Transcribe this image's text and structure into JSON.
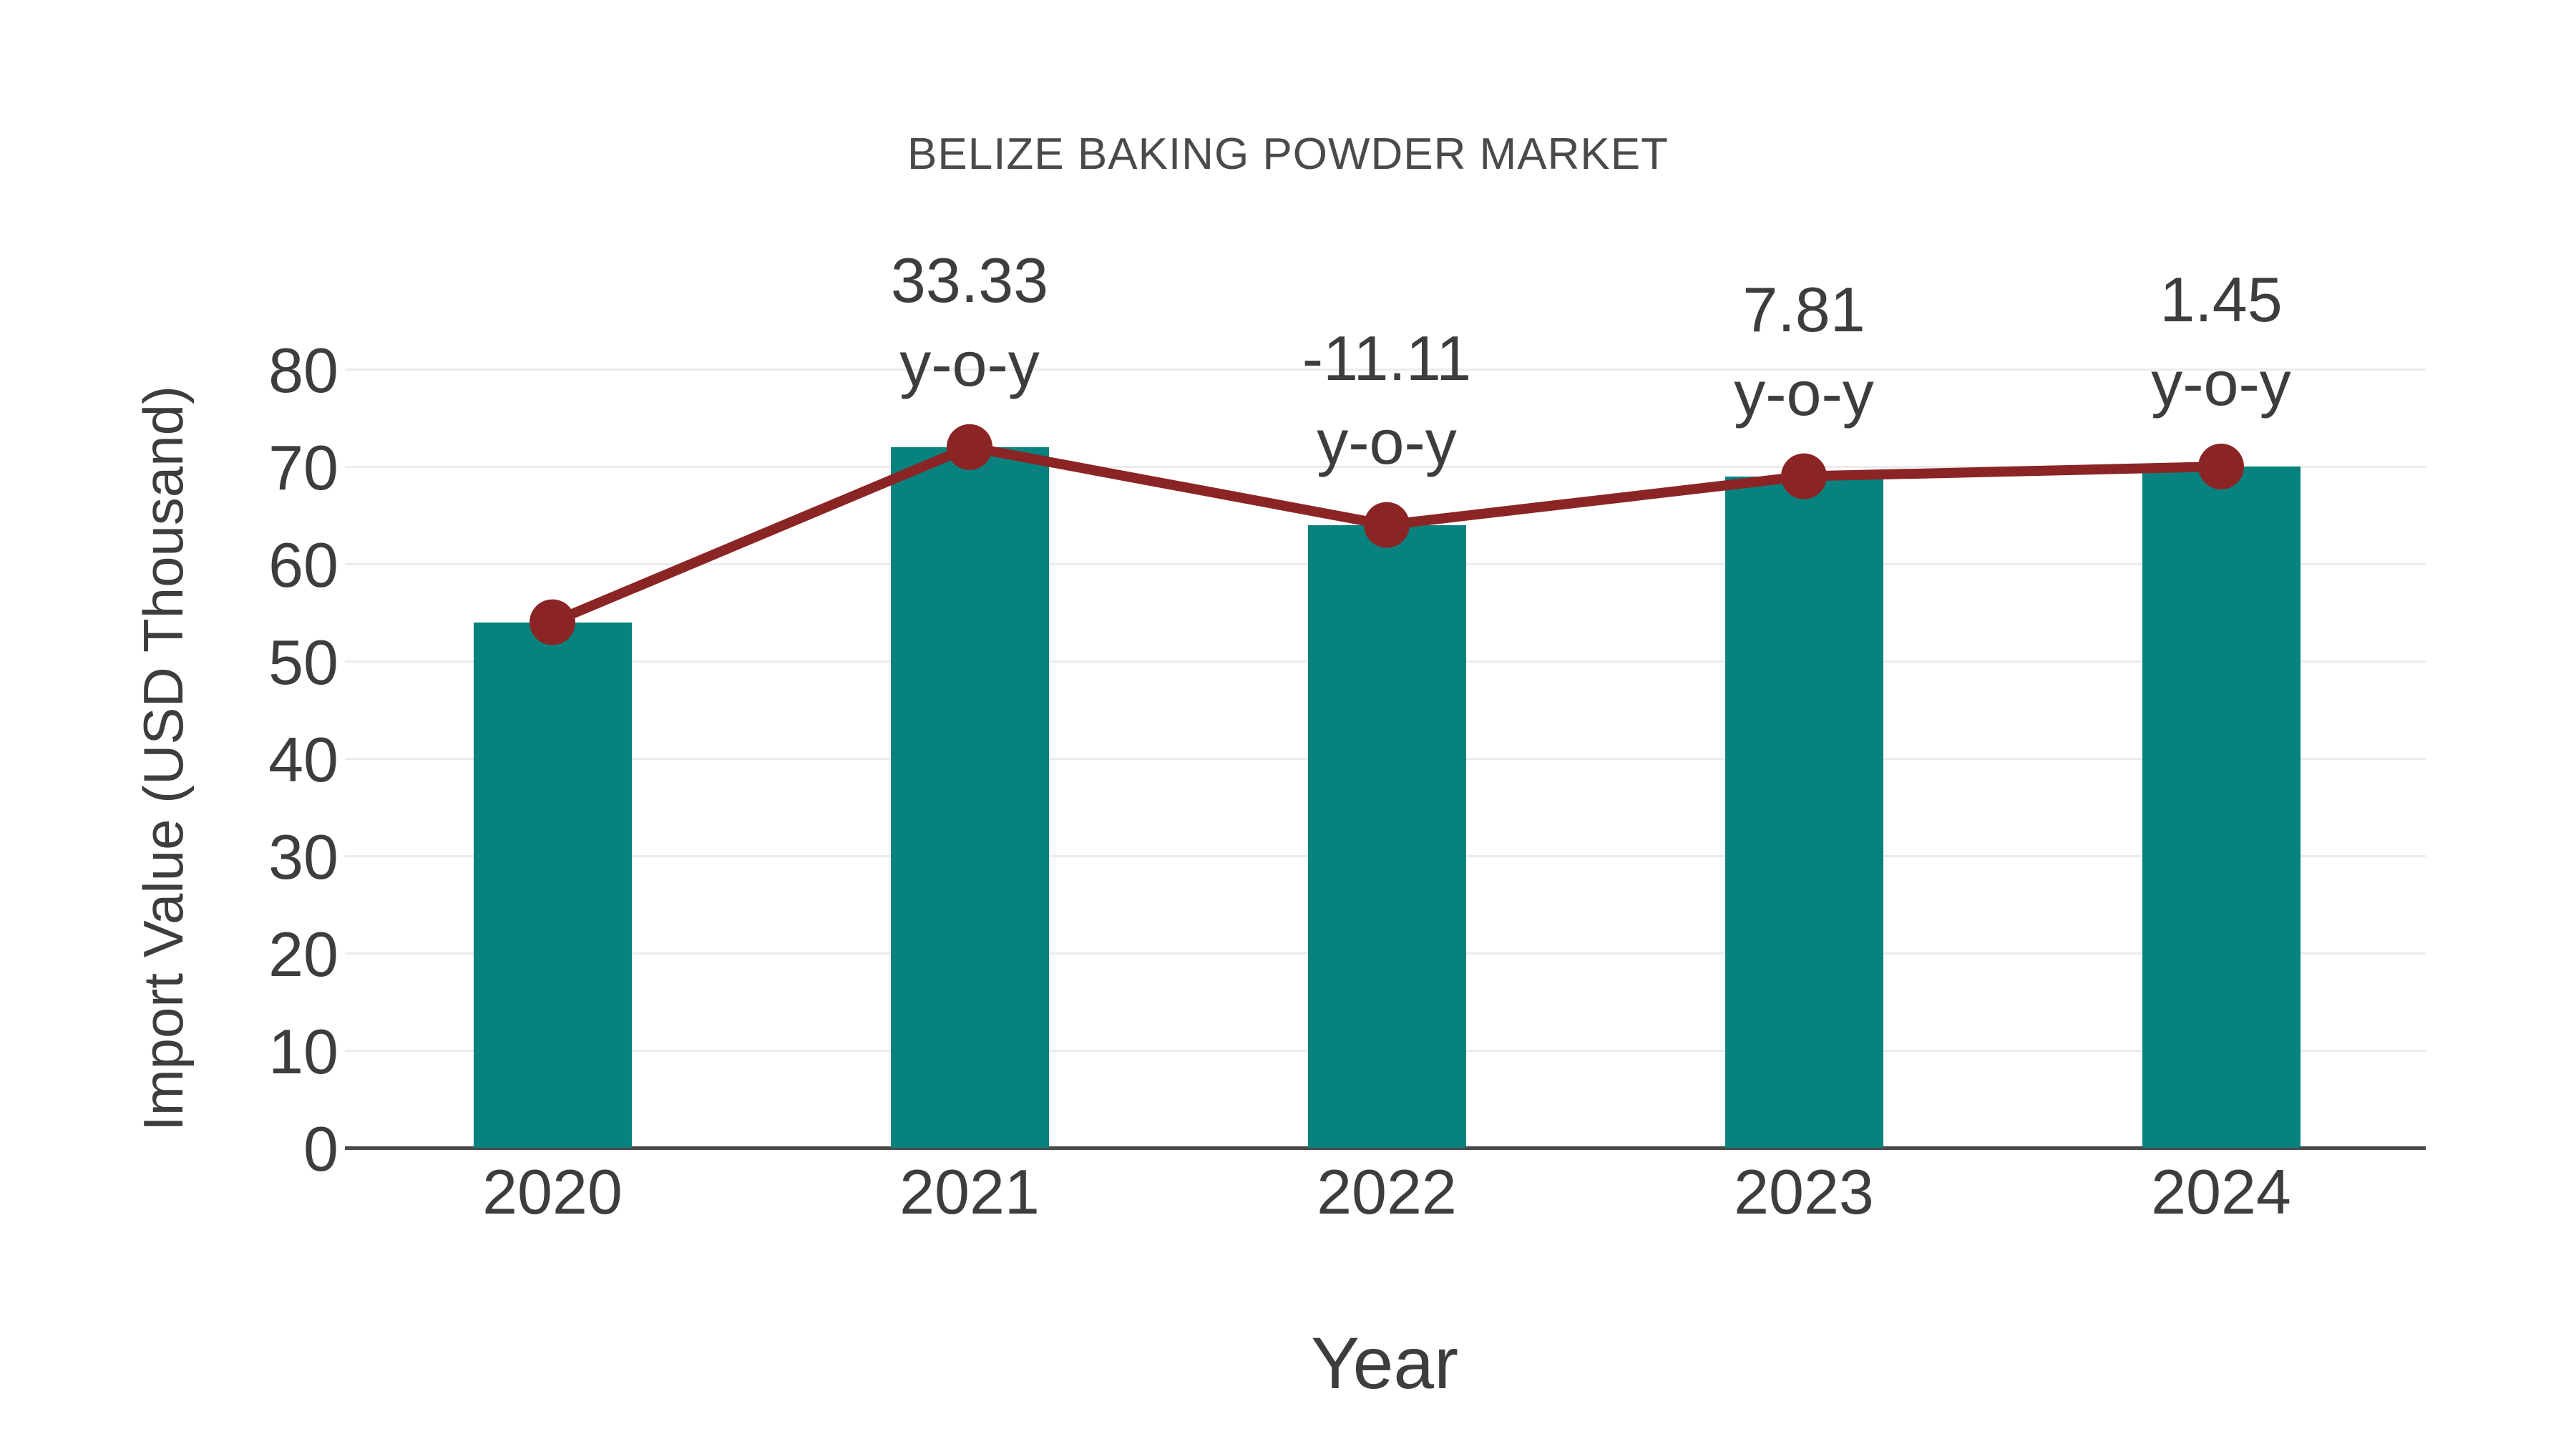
{
  "chart": {
    "title": "BELIZE BAKING POWDER MARKET",
    "xlabel": "Year",
    "ylabel": "Import Value (USD Thousand)"
  },
  "chart_data": {
    "type": "bar",
    "title": "BELIZE BAKING POWDER MARKET",
    "xlabel": "Year",
    "ylabel": "Import Value (USD Thousand)",
    "categories": [
      "2020",
      "2021",
      "2022",
      "2023",
      "2024"
    ],
    "series": [
      {
        "name": "Import Value bars",
        "type": "bar",
        "values": [
          54,
          72,
          64,
          69,
          70
        ],
        "color": "#07827E"
      },
      {
        "name": "Import Value trend line",
        "type": "line",
        "values": [
          54,
          72,
          64,
          69,
          70
        ],
        "color": "#8B2525"
      }
    ],
    "annotations": [
      {
        "category": "2021",
        "lines": [
          "33.33",
          "y-o-y"
        ]
      },
      {
        "category": "2022",
        "lines": [
          "-11.11",
          "y-o-y"
        ]
      },
      {
        "category": "2023",
        "lines": [
          "7.81",
          "y-o-y"
        ]
      },
      {
        "category": "2024",
        "lines": [
          "1.45",
          "y-o-y"
        ]
      }
    ],
    "ylim": [
      0,
      80
    ],
    "yticks": [
      0,
      10,
      20,
      30,
      40,
      50,
      60,
      70,
      80
    ],
    "grid": true,
    "legend": false
  },
  "colors": {
    "bar": "#07827E",
    "line": "#8B2525",
    "grid": "#ececec",
    "axis": "#4a4a4a",
    "text": "#3d3d3d"
  }
}
